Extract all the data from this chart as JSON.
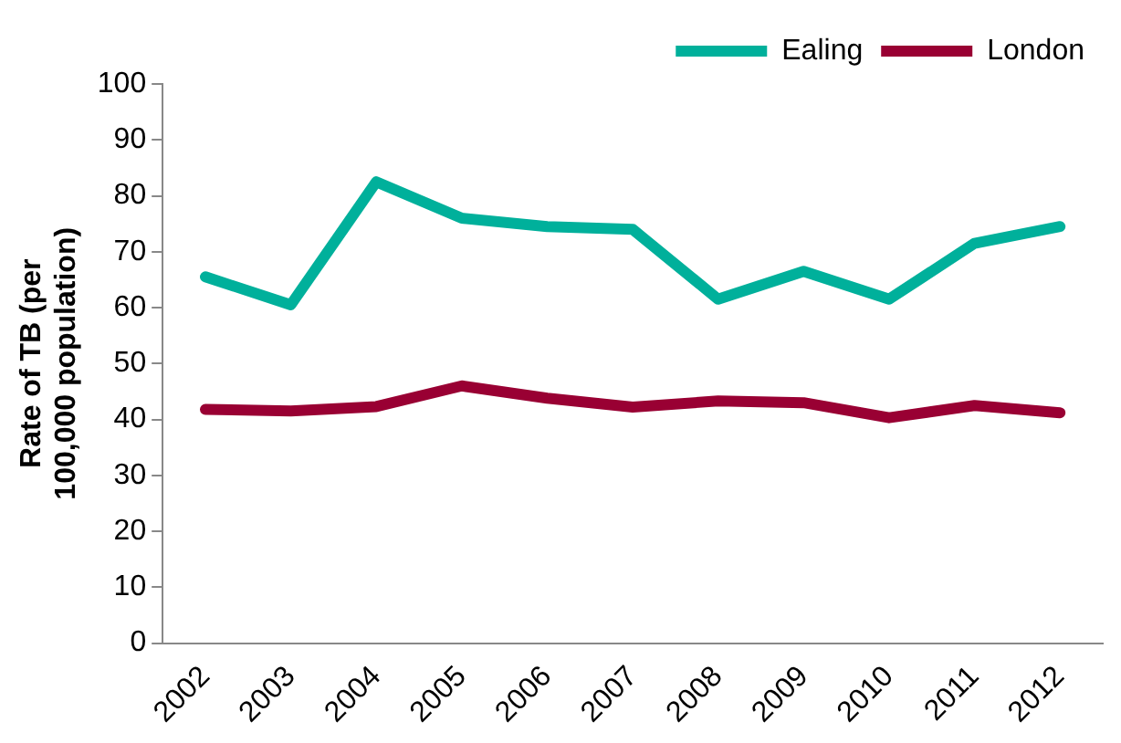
{
  "chart_data": {
    "type": "line",
    "ylabel": "Rate of TB (per 100,000 population)",
    "categories": [
      "2002",
      "2003",
      "2004",
      "2005",
      "2006",
      "2007",
      "2008",
      "2009",
      "2010",
      "2011",
      "2012"
    ],
    "series": [
      {
        "name": "Ealing",
        "color": "#00b09b",
        "values": [
          65.5,
          60.5,
          82.5,
          76,
          74.5,
          74,
          61.5,
          66.5,
          61.5,
          71.5,
          74.5
        ]
      },
      {
        "name": "London",
        "color": "#990033",
        "values": [
          41.8,
          41.5,
          42.3,
          46,
          43.8,
          42.2,
          43.3,
          43,
          40.3,
          42.5,
          41.2
        ]
      }
    ],
    "ylim": [
      0,
      100
    ],
    "yticks": [
      0,
      10,
      20,
      30,
      40,
      50,
      60,
      70,
      80,
      90,
      100
    ],
    "grid": false,
    "legend": "top right",
    "marker": "none",
    "line_style": "solid"
  }
}
